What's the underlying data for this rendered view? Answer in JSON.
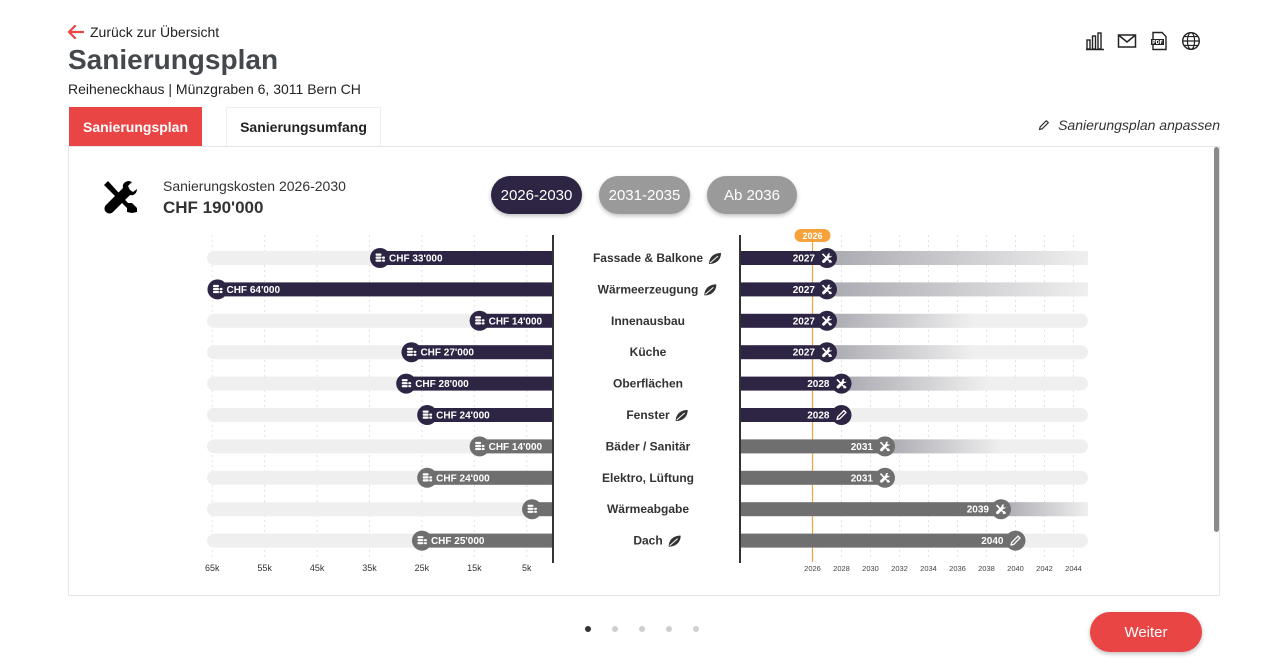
{
  "header": {
    "back_label": "Zurück zur Übersicht",
    "title": "Sanierungsplan",
    "address": "Reiheneckhaus | Münzgraben 6, 3011 Bern CH"
  },
  "toolbar": {
    "icons": [
      "bar-chart-icon",
      "mail-icon",
      "pdf-icon",
      "globe-icon"
    ]
  },
  "tabs": [
    {
      "label": "Sanierungsplan",
      "active": true
    },
    {
      "label": "Sanierungsumfang",
      "active": false
    }
  ],
  "adjust_label": "Sanierungsplan anpassen",
  "summary": {
    "cost_label": "Sanierungskosten 2026-2030",
    "cost_value": "CHF 190'000"
  },
  "periods": [
    {
      "label": "2026-2030",
      "active": true
    },
    {
      "label": "2031-2035",
      "active": false
    },
    {
      "label": "Ab 2036",
      "active": false
    }
  ],
  "colors": {
    "accent": "#e94545",
    "dark": "#2e2544",
    "grey": "#6f6f6f",
    "track": "#efefef",
    "marker": "#f5a23a"
  },
  "chart_data": {
    "type": "bar",
    "cost_axis": {
      "ticks": [
        65000,
        55000,
        45000,
        35000,
        25000,
        15000,
        5000
      ],
      "tick_labels": [
        "65k",
        "55k",
        "45k",
        "35k",
        "25k",
        "15k",
        "5k"
      ],
      "range": [
        0,
        65000
      ]
    },
    "year_axis": {
      "ticks": [
        2026,
        2028,
        2030,
        2032,
        2034,
        2036,
        2038,
        2040,
        2042,
        2044
      ],
      "tick_labels": [
        "2026",
        "2028",
        "2030",
        "2032",
        "2034",
        "2036",
        "2038",
        "2040",
        "2042",
        "2044"
      ],
      "range": [
        2021,
        2045
      ],
      "current_year_label": "2026",
      "current_year": 2026
    },
    "categories": [
      {
        "label": "Fassade & Balkone",
        "cost": 33000,
        "cost_label": "CHF 33'000",
        "year": 2027,
        "year_label": "2027",
        "in_period": true,
        "icon": "tools",
        "leaf": true,
        "fade_end": 2045
      },
      {
        "label": "Wärmeerzeugung",
        "cost": 64000,
        "cost_label": "CHF 64'000",
        "year": 2027,
        "year_label": "2027",
        "in_period": true,
        "icon": "tools",
        "leaf": true,
        "fade_end": 2045
      },
      {
        "label": "Innenausbau",
        "cost": 14000,
        "cost_label": "CHF 14'000",
        "year": 2027,
        "year_label": "2027",
        "in_period": true,
        "icon": "tools",
        "leaf": false,
        "fade_end": 2037
      },
      {
        "label": "Küche",
        "cost": 27000,
        "cost_label": "CHF 27'000",
        "year": 2027,
        "year_label": "2027",
        "in_period": true,
        "icon": "tools",
        "leaf": false,
        "fade_end": 2037
      },
      {
        "label": "Oberflächen",
        "cost": 28000,
        "cost_label": "CHF 28'000",
        "year": 2028,
        "year_label": "2028",
        "in_period": true,
        "icon": "tools",
        "leaf": false,
        "fade_end": 2038
      },
      {
        "label": "Fenster",
        "cost": 24000,
        "cost_label": "CHF 24'000",
        "year": 2028,
        "year_label": "2028",
        "in_period": true,
        "icon": "pencil",
        "leaf": true,
        "fade_end": 2028
      },
      {
        "label": "Bäder / Sanitär",
        "cost": 14000,
        "cost_label": "CHF 14'000",
        "year": 2031,
        "year_label": "2031",
        "in_period": false,
        "icon": "tools",
        "leaf": false,
        "fade_end": 2039
      },
      {
        "label": "Elektro, Lüftung",
        "cost": 24000,
        "cost_label": "CHF 24'000",
        "year": 2031,
        "year_label": "2031",
        "in_period": false,
        "icon": "tools",
        "leaf": false,
        "fade_end": 2031
      },
      {
        "label": "Wärmeabgabe",
        "cost": 4000,
        "cost_label": "",
        "year": 2039,
        "year_label": "2039",
        "in_period": false,
        "icon": "tools",
        "leaf": false,
        "fade_end": 2045
      },
      {
        "label": "Dach",
        "cost": 25000,
        "cost_label": "CHF 25'000",
        "year": 2040,
        "year_label": "2040",
        "in_period": false,
        "icon": "pencil",
        "leaf": true,
        "fade_end": 2040
      }
    ]
  },
  "pager": {
    "count": 5,
    "active": 0
  },
  "next_label": "Weiter"
}
